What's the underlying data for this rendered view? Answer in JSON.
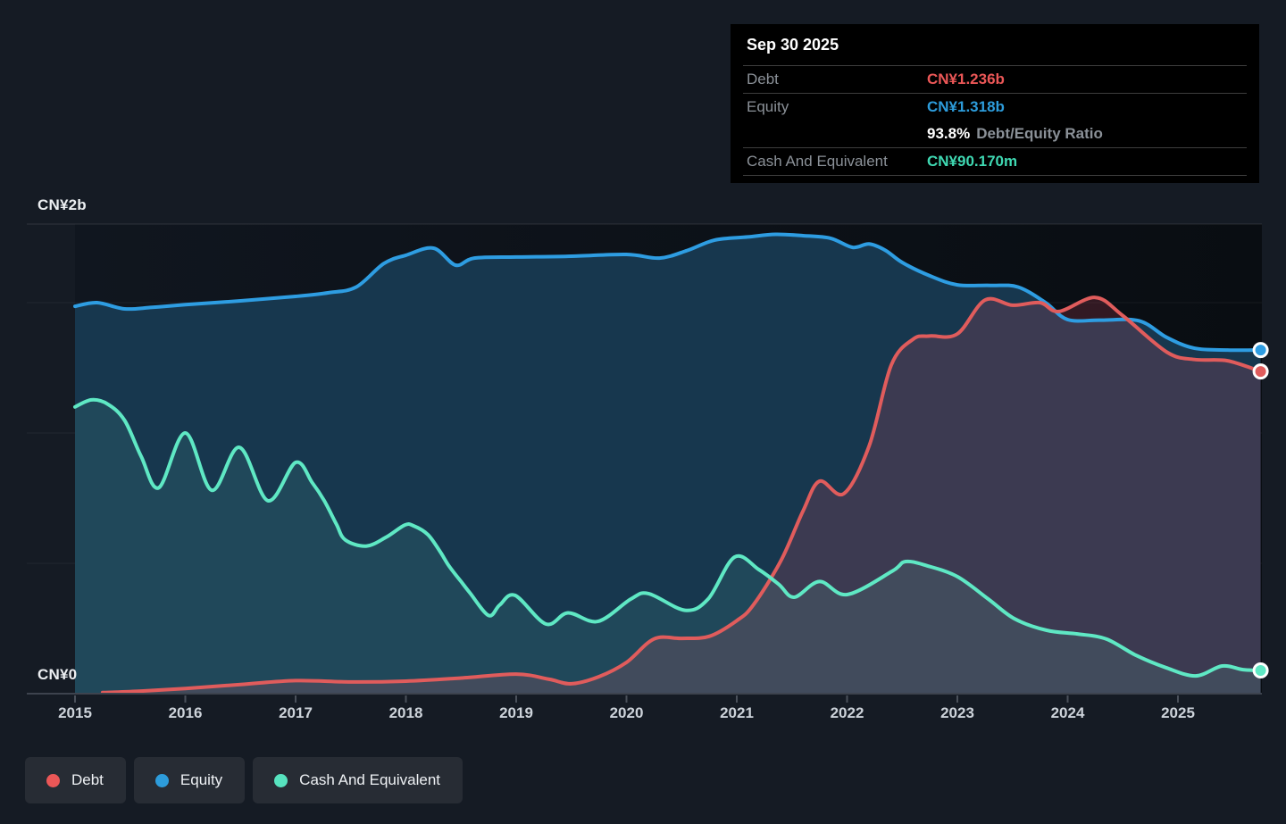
{
  "tooltip": {
    "date": "Sep 30 2025",
    "debt_label": "Debt",
    "debt_value": "CN¥1.236b",
    "debt_color": "#eb5757",
    "equity_label": "Equity",
    "equity_value": "CN¥1.318b",
    "equity_color": "#2d9cdb",
    "ratio_value": "93.8%",
    "ratio_label": "Debt/Equity Ratio",
    "cash_label": "Cash And Equivalent",
    "cash_value": "CN¥90.170m",
    "cash_color": "#3fd8b2"
  },
  "axis": {
    "y_top_label": "CN¥2b",
    "y_bottom_label": "CN¥0",
    "years": [
      "2015",
      "2016",
      "2017",
      "2018",
      "2019",
      "2020",
      "2021",
      "2022",
      "2023",
      "2024",
      "2025"
    ]
  },
  "legend": [
    {
      "label": "Debt",
      "color": "#eb5757"
    },
    {
      "label": "Equity",
      "color": "#2d9cdb"
    },
    {
      "label": "Cash And Equivalent",
      "color": "#57e3bf"
    }
  ],
  "chart_data": {
    "type": "area",
    "title": "",
    "unit": "CN¥ billions",
    "x_range": [
      2015.0,
      2025.75
    ],
    "ylim": [
      0,
      2.0
    ],
    "y_gridlines_b": [
      0.5,
      1.0,
      1.5
    ],
    "legend_position": "bottom-left",
    "last_point_date": "Sep 30 2025",
    "last_values": {
      "debt_b": 1.236,
      "equity_b": 1.318,
      "cash_m": 90.17,
      "debt_equity_ratio_pct": 93.8
    },
    "series": [
      {
        "id": "equity",
        "name": "Equity",
        "color": "#2e9de2",
        "fill": "#17374e",
        "points": [
          [
            2015.0,
            1.486
          ],
          [
            2015.2,
            1.5
          ],
          [
            2015.45,
            1.476
          ],
          [
            2015.7,
            1.482
          ],
          [
            2016.0,
            1.492
          ],
          [
            2016.5,
            1.507
          ],
          [
            2017.0,
            1.524
          ],
          [
            2017.3,
            1.538
          ],
          [
            2017.55,
            1.56
          ],
          [
            2017.8,
            1.65
          ],
          [
            2018.0,
            1.682
          ],
          [
            2018.25,
            1.709
          ],
          [
            2018.45,
            1.644
          ],
          [
            2018.62,
            1.671
          ],
          [
            2019.0,
            1.675
          ],
          [
            2019.5,
            1.678
          ],
          [
            2020.0,
            1.685
          ],
          [
            2020.3,
            1.671
          ],
          [
            2020.55,
            1.7
          ],
          [
            2020.8,
            1.74
          ],
          [
            2021.1,
            1.752
          ],
          [
            2021.35,
            1.762
          ],
          [
            2021.6,
            1.757
          ],
          [
            2021.85,
            1.747
          ],
          [
            2022.05,
            1.712
          ],
          [
            2022.2,
            1.725
          ],
          [
            2022.35,
            1.7
          ],
          [
            2022.5,
            1.654
          ],
          [
            2022.75,
            1.603
          ],
          [
            2023.0,
            1.568
          ],
          [
            2023.3,
            1.566
          ],
          [
            2023.55,
            1.56
          ],
          [
            2023.8,
            1.5
          ],
          [
            2024.0,
            1.435
          ],
          [
            2024.3,
            1.433
          ],
          [
            2024.65,
            1.43
          ],
          [
            2024.9,
            1.366
          ],
          [
            2025.15,
            1.325
          ],
          [
            2025.45,
            1.318
          ],
          [
            2025.75,
            1.318
          ]
        ]
      },
      {
        "id": "debt",
        "name": "Debt",
        "color": "#e05c5c",
        "fill": "rgba(208,70,96,0.20)",
        "points": [
          [
            2015.25,
            0.004
          ],
          [
            2015.6,
            0.01
          ],
          [
            2016.0,
            0.02
          ],
          [
            2016.5,
            0.035
          ],
          [
            2017.0,
            0.05
          ],
          [
            2017.5,
            0.045
          ],
          [
            2018.0,
            0.048
          ],
          [
            2018.5,
            0.06
          ],
          [
            2019.0,
            0.075
          ],
          [
            2019.3,
            0.055
          ],
          [
            2019.5,
            0.038
          ],
          [
            2019.75,
            0.065
          ],
          [
            2020.0,
            0.12
          ],
          [
            2020.25,
            0.21
          ],
          [
            2020.5,
            0.212
          ],
          [
            2020.75,
            0.22
          ],
          [
            2021.0,
            0.28
          ],
          [
            2021.15,
            0.34
          ],
          [
            2021.4,
            0.51
          ],
          [
            2021.6,
            0.7
          ],
          [
            2021.75,
            0.815
          ],
          [
            2021.97,
            0.767
          ],
          [
            2022.2,
            0.95
          ],
          [
            2022.4,
            1.26
          ],
          [
            2022.6,
            1.36
          ],
          [
            2022.75,
            1.372
          ],
          [
            2023.0,
            1.38
          ],
          [
            2023.25,
            1.51
          ],
          [
            2023.5,
            1.49
          ],
          [
            2023.75,
            1.5
          ],
          [
            2023.92,
            1.466
          ],
          [
            2024.25,
            1.52
          ],
          [
            2024.5,
            1.45
          ],
          [
            2024.9,
            1.31
          ],
          [
            2025.15,
            1.282
          ],
          [
            2025.45,
            1.277
          ],
          [
            2025.75,
            1.236
          ]
        ]
      },
      {
        "id": "cash",
        "name": "Cash And Equivalent",
        "color": "#5fe8c4",
        "fill": "rgba(120,230,200,0.10)",
        "points": [
          [
            2015.0,
            1.1
          ],
          [
            2015.15,
            1.127
          ],
          [
            2015.3,
            1.11
          ],
          [
            2015.45,
            1.048
          ],
          [
            2015.6,
            0.91
          ],
          [
            2015.76,
            0.79
          ],
          [
            2016.0,
            1.0
          ],
          [
            2016.24,
            0.78
          ],
          [
            2016.49,
            0.945
          ],
          [
            2016.75,
            0.74
          ],
          [
            2017.0,
            0.887
          ],
          [
            2017.15,
            0.81
          ],
          [
            2017.26,
            0.74
          ],
          [
            2017.37,
            0.65
          ],
          [
            2017.45,
            0.59
          ],
          [
            2017.64,
            0.566
          ],
          [
            2017.82,
            0.6
          ],
          [
            2017.99,
            0.647
          ],
          [
            2018.07,
            0.644
          ],
          [
            2018.2,
            0.61
          ],
          [
            2018.31,
            0.545
          ],
          [
            2018.39,
            0.49
          ],
          [
            2018.5,
            0.43
          ],
          [
            2018.58,
            0.387
          ],
          [
            2018.75,
            0.3
          ],
          [
            2018.85,
            0.34
          ],
          [
            2018.99,
            0.377
          ],
          [
            2019.27,
            0.267
          ],
          [
            2019.47,
            0.31
          ],
          [
            2019.74,
            0.277
          ],
          [
            2020.04,
            0.363
          ],
          [
            2020.2,
            0.384
          ],
          [
            2020.53,
            0.32
          ],
          [
            2020.74,
            0.363
          ],
          [
            2020.98,
            0.524
          ],
          [
            2021.2,
            0.476
          ],
          [
            2021.38,
            0.42
          ],
          [
            2021.52,
            0.37
          ],
          [
            2021.75,
            0.43
          ],
          [
            2022.0,
            0.38
          ],
          [
            2022.41,
            0.47
          ],
          [
            2022.53,
            0.507
          ],
          [
            2022.73,
            0.49
          ],
          [
            2023.0,
            0.449
          ],
          [
            2023.28,
            0.363
          ],
          [
            2023.52,
            0.287
          ],
          [
            2023.81,
            0.243
          ],
          [
            2024.09,
            0.229
          ],
          [
            2024.35,
            0.21
          ],
          [
            2024.62,
            0.147
          ],
          [
            2024.89,
            0.1
          ],
          [
            2025.16,
            0.068
          ],
          [
            2025.4,
            0.106
          ],
          [
            2025.59,
            0.092
          ],
          [
            2025.75,
            0.089
          ]
        ]
      }
    ]
  }
}
